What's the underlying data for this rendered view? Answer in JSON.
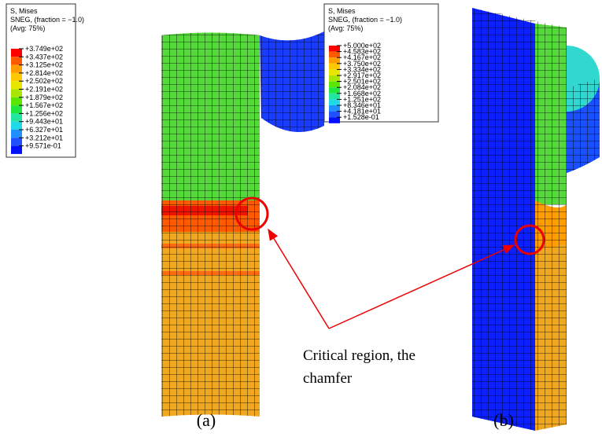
{
  "legend_a": {
    "title": "S, Mises",
    "subtitle": "SNEG, (fraction = −1.0)",
    "avg": "(Avg: 75%)",
    "labels": [
      "+3.749e+02",
      "+3.437e+02",
      "+3.125e+02",
      "+2.814e+02",
      "+2.502e+02",
      "+2.191e+02",
      "+1.879e+02",
      "+1.567e+02",
      "+1.256e+02",
      "+9.443e+01",
      "+6.327e+01",
      "+3.212e+01",
      "+9.571e-01"
    ],
    "colors": [
      "#ff0000",
      "#ff5a00",
      "#ff9c00",
      "#ffc800",
      "#e6e600",
      "#a8e600",
      "#5ae600",
      "#20e640",
      "#20e6a0",
      "#20d8e6",
      "#2090ff",
      "#2050ff",
      "#0010ff"
    ]
  },
  "legend_b": {
    "title": "S, Mises",
    "subtitle": "SNEG, (fraction = −1.0)",
    "avg": "(Avg: 75%)",
    "labels": [
      "+5.000e+02",
      "+4.583e+02",
      "+4.167e+02",
      "+3.750e+02",
      "+3.334e+02",
      "+2.917e+02",
      "+2.501e+02",
      "+2.084e+02",
      "+1.668e+02",
      "+1.251e+02",
      "+8.346e+01",
      "+4.181e+01",
      "+1.528e-01"
    ],
    "colors": [
      "#ff0000",
      "#ff5a00",
      "#ff9c00",
      "#ffc800",
      "#e6e600",
      "#a8e600",
      "#5ae600",
      "#20e640",
      "#20e6a0",
      "#20d8e6",
      "#2090ff",
      "#2050ff",
      "#0010ff"
    ]
  },
  "annotation": {
    "line1": "Critical region, the",
    "line2": "chamfer"
  },
  "captions": {
    "a": "(a)",
    "b": "(b)"
  }
}
